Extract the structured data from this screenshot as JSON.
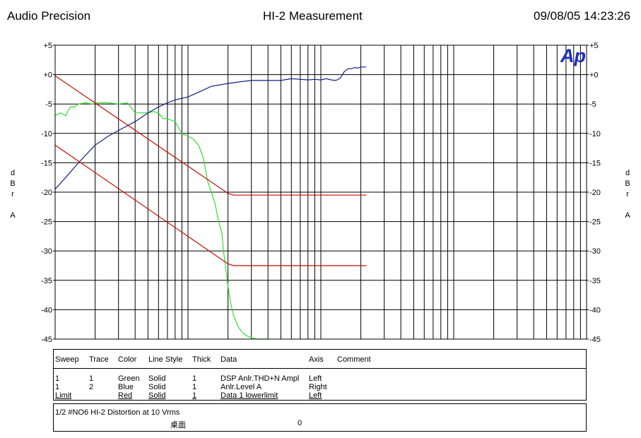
{
  "header": {
    "left": "Audio Precision",
    "center": "HI-2 Measurement",
    "right": "09/08/05 14:23:26"
  },
  "axes": {
    "left_unit": [
      "d",
      "B",
      "r",
      "A"
    ],
    "right_unit": [
      "d",
      "B",
      "r",
      "A"
    ]
  },
  "chart_data": {
    "type": "line",
    "title": "HI-2 Measurement",
    "x_scale": "log",
    "xlim": [
      10,
      100000
    ],
    "ylim": [
      -45,
      5
    ],
    "yticks": [
      5,
      0,
      -5,
      -10,
      -15,
      -20,
      -25,
      -30,
      -35,
      -40,
      -45
    ],
    "ytick_labels": [
      "+5",
      "+0",
      "-5",
      "-10",
      "-15",
      "-20",
      "-25",
      "-30",
      "-35",
      "-40",
      "-45"
    ],
    "grid": true,
    "logo": "Ap",
    "series": [
      {
        "name": "DSP Anlr.THD+N Ampl",
        "color": "#33dd33",
        "x": [
          10,
          11,
          12,
          13,
          14,
          15,
          17,
          19,
          21,
          25,
          30,
          35,
          40,
          45,
          50,
          55,
          60,
          65,
          70,
          80,
          90,
          100,
          110,
          120,
          130,
          140,
          150,
          160,
          170,
          180,
          185,
          190,
          195,
          200,
          210,
          220,
          230,
          240,
          250,
          260,
          280,
          300,
          330,
          360,
          400
        ],
        "y": [
          -7,
          -6.5,
          -7,
          -5.5,
          -5.5,
          -5,
          -4.8,
          -5,
          -4.8,
          -4.8,
          -5,
          -4.8,
          -6.5,
          -6.5,
          -6.5,
          -6.3,
          -6.5,
          -7.5,
          -7.5,
          -8,
          -10,
          -10.5,
          -11,
          -12,
          -14,
          -18,
          -20,
          -22,
          -25,
          -27,
          -30,
          -32,
          -34,
          -36,
          -39,
          -41,
          -42,
          -43,
          -43.5,
          -44,
          -44.5,
          -44.8,
          -45,
          -45,
          -45
        ]
      },
      {
        "name": "Anlr.Level A",
        "color": "#102080",
        "x": [
          10,
          12,
          15,
          20,
          25,
          30,
          40,
          50,
          60,
          70,
          80,
          100,
          120,
          150,
          200,
          250,
          300,
          400,
          500,
          600,
          700,
          800,
          900,
          1000,
          1100,
          1200,
          1300,
          1400,
          1500,
          1600,
          1700,
          1800,
          1900,
          2000,
          2200
        ],
        "y": [
          -19.5,
          -17.5,
          -15,
          -12,
          -10.5,
          -9.5,
          -8,
          -6.5,
          -5.5,
          -4.8,
          -4.3,
          -3.8,
          -3,
          -2,
          -1.5,
          -1.2,
          -1,
          -1,
          -1,
          -0.7,
          -0.8,
          -0.9,
          -0.8,
          -0.9,
          -0.7,
          -0.9,
          -1,
          -0.6,
          0.5,
          1,
          1,
          1.2,
          1.1,
          1.3,
          1.3
        ]
      },
      {
        "name": "Data 1 lowerlimit",
        "color": "#c01000",
        "x": [
          10,
          200,
          220,
          2200
        ],
        "y": [
          -0.2,
          -20.2,
          -20.5,
          -20.5
        ]
      },
      {
        "name": "Data 1 lowerlimit",
        "color": "#c01000",
        "x": [
          10,
          200,
          220,
          2200
        ],
        "y": [
          -12,
          -32.2,
          -32.5,
          -32.5
        ]
      }
    ]
  },
  "legend": {
    "headers": [
      "Sweep",
      "Trace",
      "Color",
      "Line Style",
      "Thick",
      "Data",
      "Axis",
      "Comment"
    ],
    "rows": [
      [
        "1",
        "1",
        "Green",
        "Solid",
        "1",
        "DSP Anlr.THD+N Ampl",
        "Left",
        ""
      ],
      [
        "1",
        "2",
        "Blue",
        "Solid",
        "1",
        "Anlr.Level A",
        "Right",
        ""
      ],
      [
        "Limit",
        "",
        "Red",
        "Solid",
        "1",
        "Data 1 lowerlimit",
        "Left",
        ""
      ]
    ]
  },
  "comment": {
    "line1": "1/2 #NO6  HI-2 Distortion at  10 Vrms",
    "line2_a": "桌面",
    "line2_b": "0"
  }
}
